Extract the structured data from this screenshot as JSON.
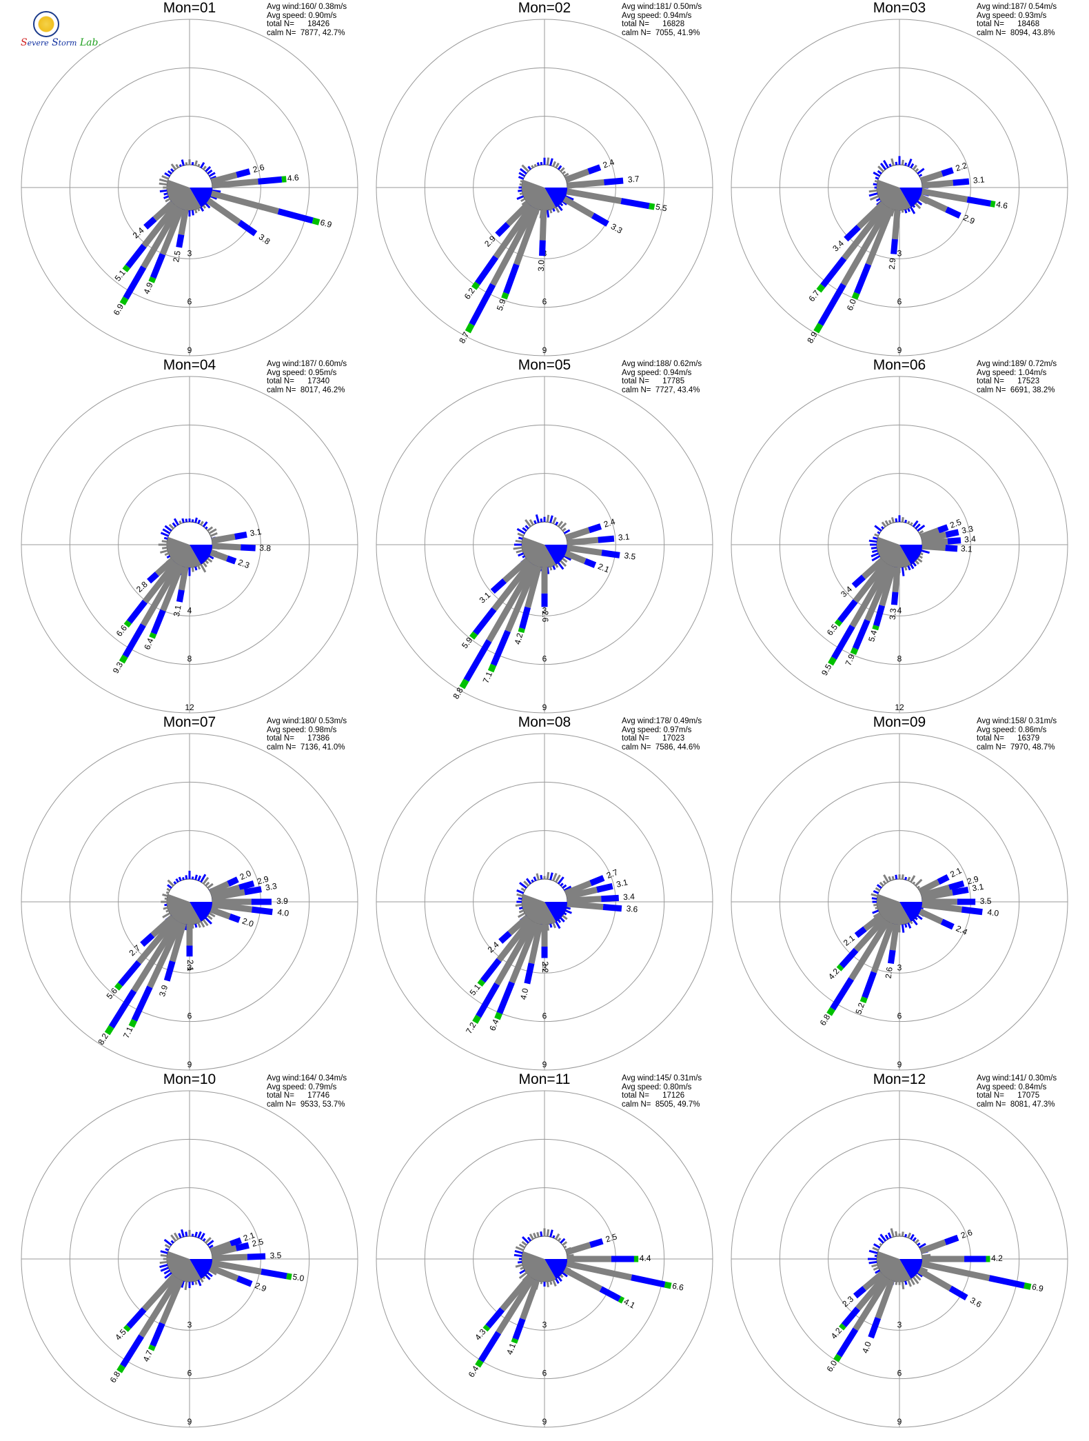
{
  "logo": {
    "text": "Severe Storm Lab."
  },
  "legend": {
    "line1_label": "Avg wind:",
    "line2_label": "Avg speed:",
    "line3_label": "total N=",
    "line4_label": "calm N="
  },
  "colors": {
    "low": "#808080",
    "mid": "#0000ff",
    "high": "#00c000",
    "grid": "#999999"
  },
  "chart_data": [
    {
      "type": "polar-bar",
      "title": "Mon=01",
      "stats": {
        "avg_wind": "160/ 0.38m/s",
        "avg_speed": "0.90m/s",
        "total_n": "18426",
        "calm_n": "7877, 42.7%"
      },
      "rings": [
        3,
        6,
        9
      ],
      "calm_pct": 42.7,
      "bars": [
        {
          "dir": 75,
          "value": 2.6,
          "label": "2.6"
        },
        {
          "dir": 85,
          "value": 4.6,
          "label": "4.6"
        },
        {
          "dir": 105,
          "value": 6.9,
          "label": "6.9"
        },
        {
          "dir": 125,
          "value": 3.8,
          "label": "3.8"
        },
        {
          "dir": 190,
          "value": 2.5,
          "label": "2.5"
        },
        {
          "dir": 202,
          "value": 4.9,
          "label": "4.9"
        },
        {
          "dir": 210,
          "value": 6.9,
          "label": "6.9"
        },
        {
          "dir": 218,
          "value": 5.1,
          "label": "5.1"
        },
        {
          "dir": 228,
          "value": 2.4,
          "label": "2.4"
        }
      ]
    },
    {
      "type": "polar-bar",
      "title": "Mon=02",
      "stats": {
        "avg_wind": "181/ 0.50m/s",
        "avg_speed": "0.94m/s",
        "total_n": "16828",
        "calm_n": "7055, 41.9%"
      },
      "rings": [
        3,
        6,
        9
      ],
      "calm_pct": 41.9,
      "bars": [
        {
          "dir": 70,
          "value": 2.4,
          "label": "2.4"
        },
        {
          "dir": 85,
          "value": 3.7,
          "label": "3.7"
        },
        {
          "dir": 100,
          "value": 5.5,
          "label": "5.5"
        },
        {
          "dir": 120,
          "value": 3.3,
          "label": "3.3"
        },
        {
          "dir": 182,
          "value": 3.0,
          "label": "3.0"
        },
        {
          "dir": 200,
          "value": 5.9,
          "label": "5.9"
        },
        {
          "dir": 208,
          "value": 8.7,
          "label": "8.7"
        },
        {
          "dir": 215,
          "value": 6.2,
          "label": "6.2"
        },
        {
          "dir": 225,
          "value": 2.9,
          "label": "2.9"
        }
      ]
    },
    {
      "type": "polar-bar",
      "title": "Mon=03",
      "stats": {
        "avg_wind": "187/ 0.54m/s",
        "avg_speed": "0.93m/s",
        "total_n": "18468",
        "calm_n": "8094, 43.8%"
      },
      "rings": [
        3,
        6,
        9
      ],
      "calm_pct": 43.8,
      "bars": [
        {
          "dir": 72,
          "value": 2.2,
          "label": "2.2"
        },
        {
          "dir": 85,
          "value": 3.1,
          "label": "3.1"
        },
        {
          "dir": 100,
          "value": 4.6,
          "label": "4.6"
        },
        {
          "dir": 115,
          "value": 2.9,
          "label": "2.9"
        },
        {
          "dir": 185,
          "value": 2.9,
          "label": "2.9"
        },
        {
          "dir": 202,
          "value": 6.0,
          "label": "6.0"
        },
        {
          "dir": 210,
          "value": 8.9,
          "label": "8.9"
        },
        {
          "dir": 218,
          "value": 6.7,
          "label": "6.7"
        },
        {
          "dir": 226,
          "value": 3.4,
          "label": "3.4"
        }
      ]
    },
    {
      "type": "polar-bar",
      "title": "Mon=04",
      "stats": {
        "avg_wind": "187/ 0.60m/s",
        "avg_speed": "0.95m/s",
        "total_n": "17340",
        "calm_n": "8017, 46.2%"
      },
      "rings": [
        4,
        8,
        12
      ],
      "calm_pct": 46.2,
      "bars": [
        {
          "dir": 80,
          "value": 3.1,
          "label": "3.1"
        },
        {
          "dir": 93,
          "value": 3.8,
          "label": "3.8"
        },
        {
          "dir": 110,
          "value": 2.3,
          "label": "2.3"
        },
        {
          "dir": 190,
          "value": 3.1,
          "label": "3.1"
        },
        {
          "dir": 202,
          "value": 6.4,
          "label": "6.4"
        },
        {
          "dir": 210,
          "value": 9.3,
          "label": "9.3"
        },
        {
          "dir": 218,
          "value": 6.6,
          "label": "6.6"
        },
        {
          "dir": 228,
          "value": 2.8,
          "label": "2.8"
        }
      ]
    },
    {
      "type": "polar-bar",
      "title": "Mon=05",
      "stats": {
        "avg_wind": "188/ 0.62m/s",
        "avg_speed": "0.94m/s",
        "total_n": "17785",
        "calm_n": "7727, 43.4%"
      },
      "rings": [
        3,
        6,
        9
      ],
      "calm_pct": 43.4,
      "bars": [
        {
          "dir": 72,
          "value": 2.4,
          "label": "2.4"
        },
        {
          "dir": 85,
          "value": 3.1,
          "label": "3.1"
        },
        {
          "dir": 98,
          "value": 3.5,
          "label": "3.5"
        },
        {
          "dir": 112,
          "value": 2.1,
          "label": "2.1"
        },
        {
          "dir": 180,
          "value": 2.6,
          "label": "2.6"
        },
        {
          "dir": 195,
          "value": 4.2,
          "label": "4.2"
        },
        {
          "dir": 203,
          "value": 7.1,
          "label": "7.1"
        },
        {
          "dir": 210,
          "value": 8.8,
          "label": "8.8"
        },
        {
          "dir": 218,
          "value": 5.9,
          "label": "5.9"
        },
        {
          "dir": 228,
          "value": 3.1,
          "label": "3.1"
        }
      ]
    },
    {
      "type": "polar-bar",
      "title": "Mon=06",
      "stats": {
        "avg_wind": "189/ 0.72m/s",
        "avg_speed": "1.04m/s",
        "total_n": "17523",
        "calm_n": "6691, 38.2%"
      },
      "rings": [
        4,
        8,
        12
      ],
      "calm_pct": 38.2,
      "bars": [
        {
          "dir": 70,
          "value": 2.5,
          "label": "2.5"
        },
        {
          "dir": 78,
          "value": 3.3,
          "label": "3.3"
        },
        {
          "dir": 86,
          "value": 3.4,
          "label": "3.4"
        },
        {
          "dir": 94,
          "value": 3.1,
          "label": "3.1"
        },
        {
          "dir": 185,
          "value": 3.3,
          "label": "3.3"
        },
        {
          "dir": 196,
          "value": 5.4,
          "label": "5.4"
        },
        {
          "dir": 203,
          "value": 7.9,
          "label": "7.9"
        },
        {
          "dir": 210,
          "value": 9.5,
          "label": "9.5"
        },
        {
          "dir": 218,
          "value": 6.5,
          "label": "6.5"
        },
        {
          "dir": 228,
          "value": 3.4,
          "label": "3.4"
        }
      ]
    },
    {
      "type": "polar-bar",
      "title": "Mon=07",
      "stats": {
        "avg_wind": "180/ 0.53m/s",
        "avg_speed": "0.98m/s",
        "total_n": "17386",
        "calm_n": "7136, 41.0%"
      },
      "rings": [
        3,
        6,
        9
      ],
      "calm_pct": 41.0,
      "bars": [
        {
          "dir": 65,
          "value": 2.0,
          "label": "2.0"
        },
        {
          "dir": 74,
          "value": 2.9,
          "label": "2.9"
        },
        {
          "dir": 80,
          "value": 3.3,
          "label": "3.3"
        },
        {
          "dir": 90,
          "value": 3.9,
          "label": "3.9"
        },
        {
          "dir": 97,
          "value": 4.0,
          "label": "4.0"
        },
        {
          "dir": 110,
          "value": 2.0,
          "label": "2.0"
        },
        {
          "dir": 180,
          "value": 2.1,
          "label": "2.1"
        },
        {
          "dir": 196,
          "value": 3.9,
          "label": "3.9"
        },
        {
          "dir": 205,
          "value": 7.1,
          "label": "7.1"
        },
        {
          "dir": 212,
          "value": 8.2,
          "label": "8.2"
        },
        {
          "dir": 220,
          "value": 5.6,
          "label": "5.6"
        },
        {
          "dir": 228,
          "value": 2.7,
          "label": "2.7"
        }
      ]
    },
    {
      "type": "polar-bar",
      "title": "Mon=08",
      "stats": {
        "avg_wind": "178/ 0.49m/s",
        "avg_speed": "0.97m/s",
        "total_n": "17023",
        "calm_n": "7586, 44.6%"
      },
      "rings": [
        3,
        6,
        9
      ],
      "calm_pct": 44.6,
      "bars": [
        {
          "dir": 68,
          "value": 2.7,
          "label": "2.7"
        },
        {
          "dir": 77,
          "value": 3.1,
          "label": "3.1"
        },
        {
          "dir": 87,
          "value": 3.4,
          "label": "3.4"
        },
        {
          "dir": 95,
          "value": 3.6,
          "label": "3.6"
        },
        {
          "dir": 180,
          "value": 2.2,
          "label": "2.2"
        },
        {
          "dir": 192,
          "value": 4.0,
          "label": "4.0"
        },
        {
          "dir": 202,
          "value": 6.4,
          "label": "6.4"
        },
        {
          "dir": 210,
          "value": 7.2,
          "label": "7.2"
        },
        {
          "dir": 218,
          "value": 5.1,
          "label": "5.1"
        },
        {
          "dir": 228,
          "value": 2.4,
          "label": "2.4"
        }
      ]
    },
    {
      "type": "polar-bar",
      "title": "Mon=09",
      "stats": {
        "avg_wind": "158/ 0.31m/s",
        "avg_speed": "0.86m/s",
        "total_n": "16379",
        "calm_n": "7970, 48.7%"
      },
      "rings": [
        3,
        6,
        9
      ],
      "calm_pct": 48.7,
      "bars": [
        {
          "dir": 63,
          "value": 2.1,
          "label": "2.1"
        },
        {
          "dir": 74,
          "value": 2.9,
          "label": "2.9"
        },
        {
          "dir": 80,
          "value": 3.1,
          "label": "3.1"
        },
        {
          "dir": 90,
          "value": 3.5,
          "label": "3.5"
        },
        {
          "dir": 97,
          "value": 4.0,
          "label": "4.0"
        },
        {
          "dir": 115,
          "value": 2.4,
          "label": "2.4"
        },
        {
          "dir": 188,
          "value": 2.6,
          "label": "2.6"
        },
        {
          "dir": 200,
          "value": 5.2,
          "label": "5.2"
        },
        {
          "dir": 212,
          "value": 6.8,
          "label": "6.8"
        },
        {
          "dir": 222,
          "value": 4.2,
          "label": "4.2"
        },
        {
          "dir": 232,
          "value": 2.1,
          "label": "2.1"
        }
      ]
    },
    {
      "type": "polar-bar",
      "title": "Mon=10",
      "stats": {
        "avg_wind": "164/ 0.34m/s",
        "avg_speed": "0.79m/s",
        "total_n": "17746",
        "calm_n": "9533, 53.7%"
      },
      "rings": [
        3,
        6,
        9
      ],
      "calm_pct": 53.7,
      "bars": [
        {
          "dir": 70,
          "value": 2.1,
          "label": "2.1"
        },
        {
          "dir": 77,
          "value": 2.5,
          "label": "2.5"
        },
        {
          "dir": 88,
          "value": 3.5,
          "label": "3.5"
        },
        {
          "dir": 100,
          "value": 5.0,
          "label": "5.0"
        },
        {
          "dir": 112,
          "value": 2.9,
          "label": "2.9"
        },
        {
          "dir": 203,
          "value": 4.7,
          "label": "4.7"
        },
        {
          "dir": 212,
          "value": 6.8,
          "label": "6.8"
        },
        {
          "dir": 222,
          "value": 4.5,
          "label": "4.5"
        }
      ]
    },
    {
      "type": "polar-bar",
      "title": "Mon=11",
      "stats": {
        "avg_wind": "145/ 0.31m/s",
        "avg_speed": "0.80m/s",
        "total_n": "17126",
        "calm_n": "8505, 49.7%"
      },
      "rings": [
        3,
        6,
        9
      ],
      "calm_pct": 49.7,
      "bars": [
        {
          "dir": 73,
          "value": 2.5,
          "label": "2.5"
        },
        {
          "dir": 90,
          "value": 4.4,
          "label": "4.4"
        },
        {
          "dir": 102,
          "value": 6.6,
          "label": "6.6"
        },
        {
          "dir": 118,
          "value": 4.1,
          "label": "4.1"
        },
        {
          "dir": 200,
          "value": 4.1,
          "label": "4.1"
        },
        {
          "dir": 212,
          "value": 6.4,
          "label": "6.4"
        },
        {
          "dir": 220,
          "value": 4.3,
          "label": "4.3"
        }
      ]
    },
    {
      "type": "polar-bar",
      "title": "Mon=12",
      "stats": {
        "avg_wind": "141/ 0.30m/s",
        "avg_speed": "0.84m/s",
        "total_n": "17075",
        "calm_n": "8081, 47.3%"
      },
      "rings": [
        3,
        6,
        9
      ],
      "calm_pct": 47.3,
      "bars": [
        {
          "dir": 70,
          "value": 2.6,
          "label": "2.6"
        },
        {
          "dir": 90,
          "value": 4.2,
          "label": "4.2"
        },
        {
          "dir": 102,
          "value": 6.9,
          "label": "6.9"
        },
        {
          "dir": 120,
          "value": 3.6,
          "label": "3.6"
        },
        {
          "dir": 200,
          "value": 4.0,
          "label": "4.0"
        },
        {
          "dir": 212,
          "value": 6.0,
          "label": "6.0"
        },
        {
          "dir": 220,
          "value": 4.2,
          "label": "4.2"
        },
        {
          "dir": 230,
          "value": 2.3,
          "label": "2.3"
        }
      ]
    }
  ]
}
